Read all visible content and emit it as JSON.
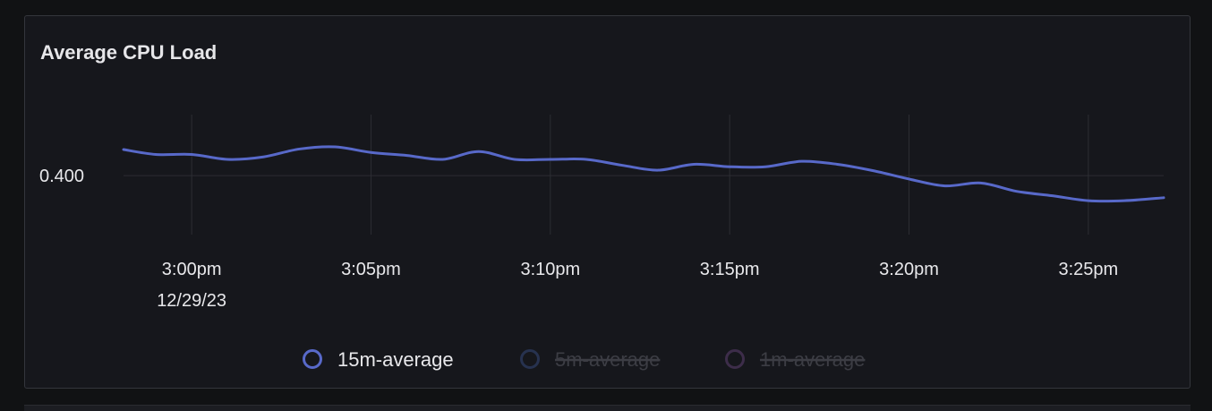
{
  "panel": {
    "title": "Average CPU Load"
  },
  "colors": {
    "background": "#111214",
    "panel": "#16171c",
    "grid": "#2c2d33",
    "text": "#e8e8eb",
    "series_active": "#5869c9",
    "series_muted_blue": "#27324f",
    "series_muted_purple": "#3d2d4a",
    "legend_muted_text": "#3c3d44"
  },
  "chart_data": {
    "type": "line",
    "title": "Average CPU Load",
    "xlabel": "",
    "ylabel": "",
    "x_ticks": [
      {
        "time": "3:00pm",
        "date": "12/29/23",
        "minutes": 0
      },
      {
        "time": "3:05pm",
        "date": "",
        "minutes": 5
      },
      {
        "time": "3:10pm",
        "date": "",
        "minutes": 10
      },
      {
        "time": "3:15pm",
        "date": "",
        "minutes": 15
      },
      {
        "time": "3:20pm",
        "date": "",
        "minutes": 20
      },
      {
        "time": "3:25pm",
        "date": "",
        "minutes": 25
      }
    ],
    "y_ticks": [
      {
        "label": "0.400",
        "value": 0.4
      }
    ],
    "x_range": [
      -1.9,
      27.1
    ],
    "y_range": [
      0.34,
      0.462
    ],
    "grid": true,
    "legend_position": "bottom-center",
    "series": [
      {
        "name": "15m-average",
        "visible": true,
        "color": "#5869c9",
        "points": [
          [
            -1.9,
            0.4265
          ],
          [
            -1.0,
            0.4215
          ],
          [
            0.0,
            0.4215
          ],
          [
            1.0,
            0.4165
          ],
          [
            2.0,
            0.419
          ],
          [
            3.0,
            0.427
          ],
          [
            4.0,
            0.4292
          ],
          [
            5.0,
            0.4235
          ],
          [
            6.0,
            0.4205
          ],
          [
            7.0,
            0.4165
          ],
          [
            8.0,
            0.4245
          ],
          [
            9.0,
            0.4165
          ],
          [
            10.0,
            0.4165
          ],
          [
            11.0,
            0.4165
          ],
          [
            12.0,
            0.4105
          ],
          [
            13.0,
            0.4055
          ],
          [
            14.0,
            0.4115
          ],
          [
            15.0,
            0.409
          ],
          [
            16.0,
            0.409
          ],
          [
            17.0,
            0.4145
          ],
          [
            18.0,
            0.4115
          ],
          [
            19.0,
            0.405
          ],
          [
            20.0,
            0.3965
          ],
          [
            21.0,
            0.3895
          ],
          [
            22.0,
            0.3925
          ],
          [
            23.0,
            0.384
          ],
          [
            24.0,
            0.3795
          ],
          [
            25.0,
            0.3745
          ],
          [
            26.0,
            0.3745
          ],
          [
            27.1,
            0.3775
          ]
        ]
      },
      {
        "name": "5m-average",
        "visible": false,
        "color": "#27324f",
        "points": []
      },
      {
        "name": "1m-average",
        "visible": false,
        "color": "#3d2d4a",
        "points": []
      }
    ]
  }
}
